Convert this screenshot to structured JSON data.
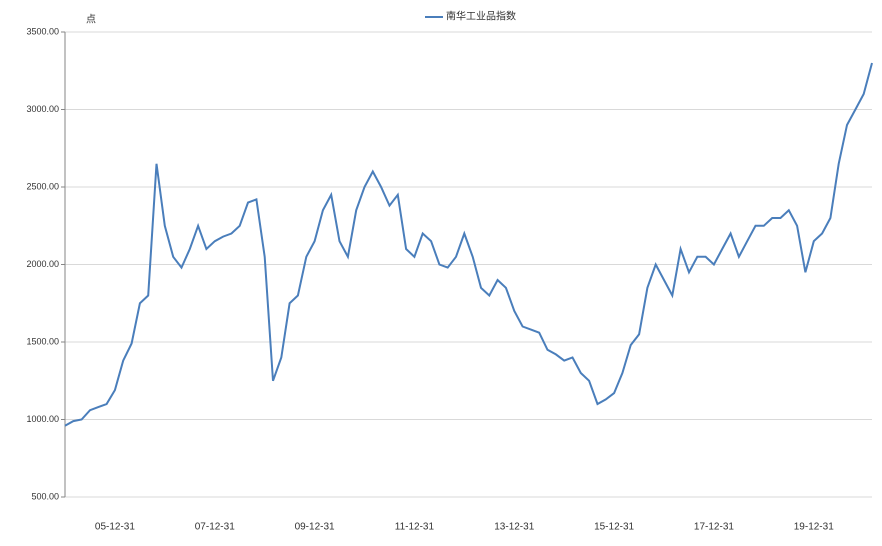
{
  "chart_data": {
    "type": "line",
    "y_label": "点",
    "categories": [
      null,
      null,
      null,
      null,
      null,
      null,
      "05-12-31",
      null,
      null,
      null,
      null,
      null,
      null,
      null,
      null,
      null,
      null,
      null,
      "07-12-31",
      null,
      null,
      null,
      null,
      null,
      null,
      null,
      null,
      null,
      null,
      null,
      "09-12-31",
      null,
      null,
      null,
      null,
      null,
      null,
      null,
      null,
      null,
      null,
      null,
      "11-12-31",
      null,
      null,
      null,
      null,
      null,
      null,
      null,
      null,
      null,
      null,
      null,
      "13-12-31",
      null,
      null,
      null,
      null,
      null,
      null,
      null,
      null,
      null,
      null,
      null,
      "15-12-31",
      null,
      null,
      null,
      null,
      null,
      null,
      null,
      null,
      null,
      null,
      null,
      "17-12-31",
      null,
      null,
      null,
      null,
      null,
      null,
      null,
      null,
      null,
      null,
      null,
      "19-12-31",
      null,
      null,
      null,
      null,
      null,
      null,
      null
    ],
    "series": [
      {
        "name": "南华工业品指数",
        "color": "#4a7ebb",
        "values": [
          960,
          990,
          1000,
          1060,
          1080,
          1100,
          1190,
          1380,
          1490,
          1750,
          1800,
          2650,
          2250,
          2050,
          1980,
          2100,
          2250,
          2100,
          2150,
          2180,
          2200,
          2250,
          2400,
          2420,
          2050,
          1250,
          1400,
          1750,
          1800,
          2050,
          2150,
          2350,
          2450,
          2150,
          2050,
          2350,
          2500,
          2600,
          2500,
          2380,
          2450,
          2100,
          2050,
          2200,
          2150,
          2000,
          1980,
          2050,
          2200,
          2050,
          1850,
          1800,
          1900,
          1850,
          1700,
          1600,
          1580,
          1560,
          1450,
          1420,
          1380,
          1400,
          1300,
          1250,
          1100,
          1130,
          1170,
          1300,
          1480,
          1550,
          1850,
          2000,
          1900,
          1800,
          2100,
          1950,
          2050,
          2050,
          2000,
          2100,
          2200,
          2050,
          2150,
          2250,
          2250,
          2300,
          2300,
          2350,
          2250,
          1950,
          2150,
          2200,
          2300,
          2650,
          2900,
          3000,
          3100,
          3300
        ]
      }
    ],
    "ylim": [
      500,
      3500
    ],
    "yticks": [
      {
        "value": 500,
        "label": "500.00"
      },
      {
        "value": 1000,
        "label": "1000.00"
      },
      {
        "value": 1500,
        "label": "1500.00"
      },
      {
        "value": 2000,
        "label": "2000.00"
      },
      {
        "value": 2500,
        "label": "2500.00"
      },
      {
        "value": 3000,
        "label": "3000.00"
      },
      {
        "value": 3500,
        "label": "3500.00"
      }
    ],
    "grid": true,
    "legend": "top"
  }
}
